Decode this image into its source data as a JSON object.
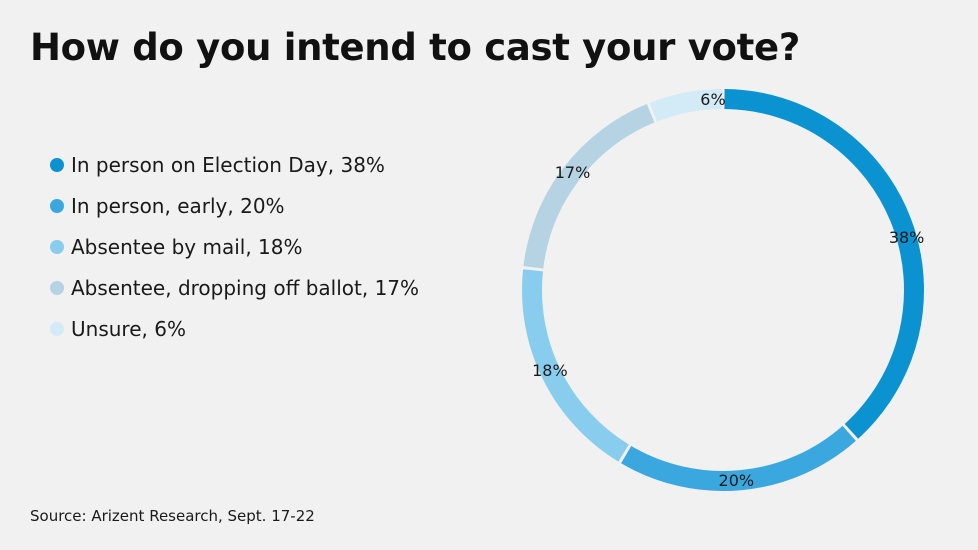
{
  "chart_data": {
    "type": "pie",
    "title": "How do you intend to cast your vote?",
    "style": "donut",
    "slices": [
      {
        "label": "In person on Election Day",
        "legend": "In person on Election Day, 38%",
        "value": 38,
        "value_label": "38%",
        "color": "#0a93d0"
      },
      {
        "label": "In person, early",
        "legend": "In person, early, 20%",
        "value": 20,
        "value_label": "20%",
        "color": "#3aa8de"
      },
      {
        "label": "Absentee by mail",
        "legend": "Absentee by mail, 18%",
        "value": 18,
        "value_label": "18%",
        "color": "#88cdee"
      },
      {
        "label": "Absentee, dropping off ballot",
        "legend": "Absentee, dropping off ballot, 17%",
        "value": 17,
        "value_label": "17%",
        "color": "#b5d3e3"
      },
      {
        "label": "Unsure",
        "legend": "Unsure, 6%",
        "value": 6,
        "value_label": "6%",
        "color": "#d3ebf7"
      }
    ],
    "source": "Source: Arizent Research, Sept. 17-22"
  }
}
